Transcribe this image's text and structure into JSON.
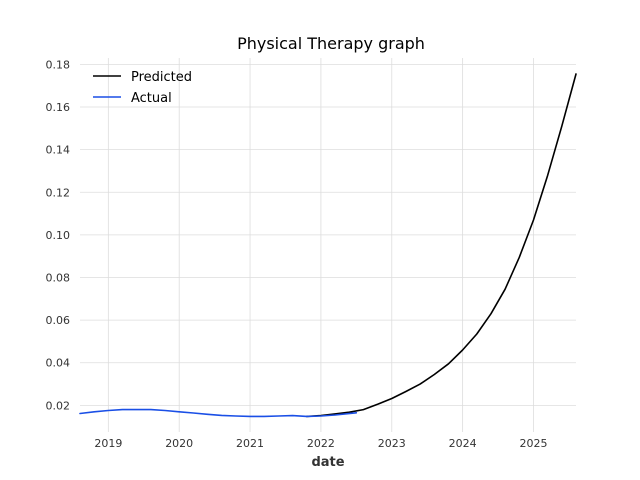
{
  "chart_data": {
    "type": "line",
    "title": "Physical Therapy graph",
    "xlabel": "date",
    "ylabel": "",
    "xlim": [
      2018.6,
      2025.6
    ],
    "ylim": [
      0.0075,
      0.183
    ],
    "x_ticks": [
      2019,
      2020,
      2021,
      2022,
      2023,
      2024,
      2025
    ],
    "y_ticks": [
      0.02,
      0.04,
      0.06,
      0.08,
      0.1,
      0.12,
      0.14,
      0.16,
      0.18
    ],
    "y_tick_labels": [
      "0.02",
      "0.04",
      "0.06",
      "0.08",
      "0.10",
      "0.12",
      "0.14",
      "0.16",
      "0.18"
    ],
    "grid": true,
    "legend_position": "top-left",
    "series": [
      {
        "name": "Predicted",
        "color": "#000000",
        "x": [
          2021.8,
          2022.0,
          2022.2,
          2022.4,
          2022.6,
          2022.8,
          2023.0,
          2023.2,
          2023.4,
          2023.6,
          2023.8,
          2024.0,
          2024.2,
          2024.4,
          2024.6,
          2024.8,
          2025.0,
          2025.2,
          2025.4,
          2025.6
        ],
        "y": [
          0.0148,
          0.0152,
          0.016,
          0.0168,
          0.018,
          0.0205,
          0.0232,
          0.0265,
          0.03,
          0.0345,
          0.0395,
          0.046,
          0.0535,
          0.063,
          0.0745,
          0.0895,
          0.107,
          0.128,
          0.151,
          0.1755
        ]
      },
      {
        "name": "Actual",
        "color": "#1a4fe6",
        "x": [
          2018.6,
          2018.8,
          2019.0,
          2019.2,
          2019.4,
          2019.6,
          2019.8,
          2020.0,
          2020.2,
          2020.4,
          2020.6,
          2020.8,
          2021.0,
          2021.2,
          2021.4,
          2021.6,
          2021.8,
          2022.0,
          2022.2,
          2022.5
        ],
        "y": [
          0.0162,
          0.017,
          0.0176,
          0.018,
          0.018,
          0.018,
          0.0176,
          0.017,
          0.0164,
          0.0158,
          0.0153,
          0.015,
          0.0148,
          0.0148,
          0.015,
          0.0152,
          0.0148,
          0.015,
          0.0155,
          0.0165
        ]
      }
    ]
  }
}
